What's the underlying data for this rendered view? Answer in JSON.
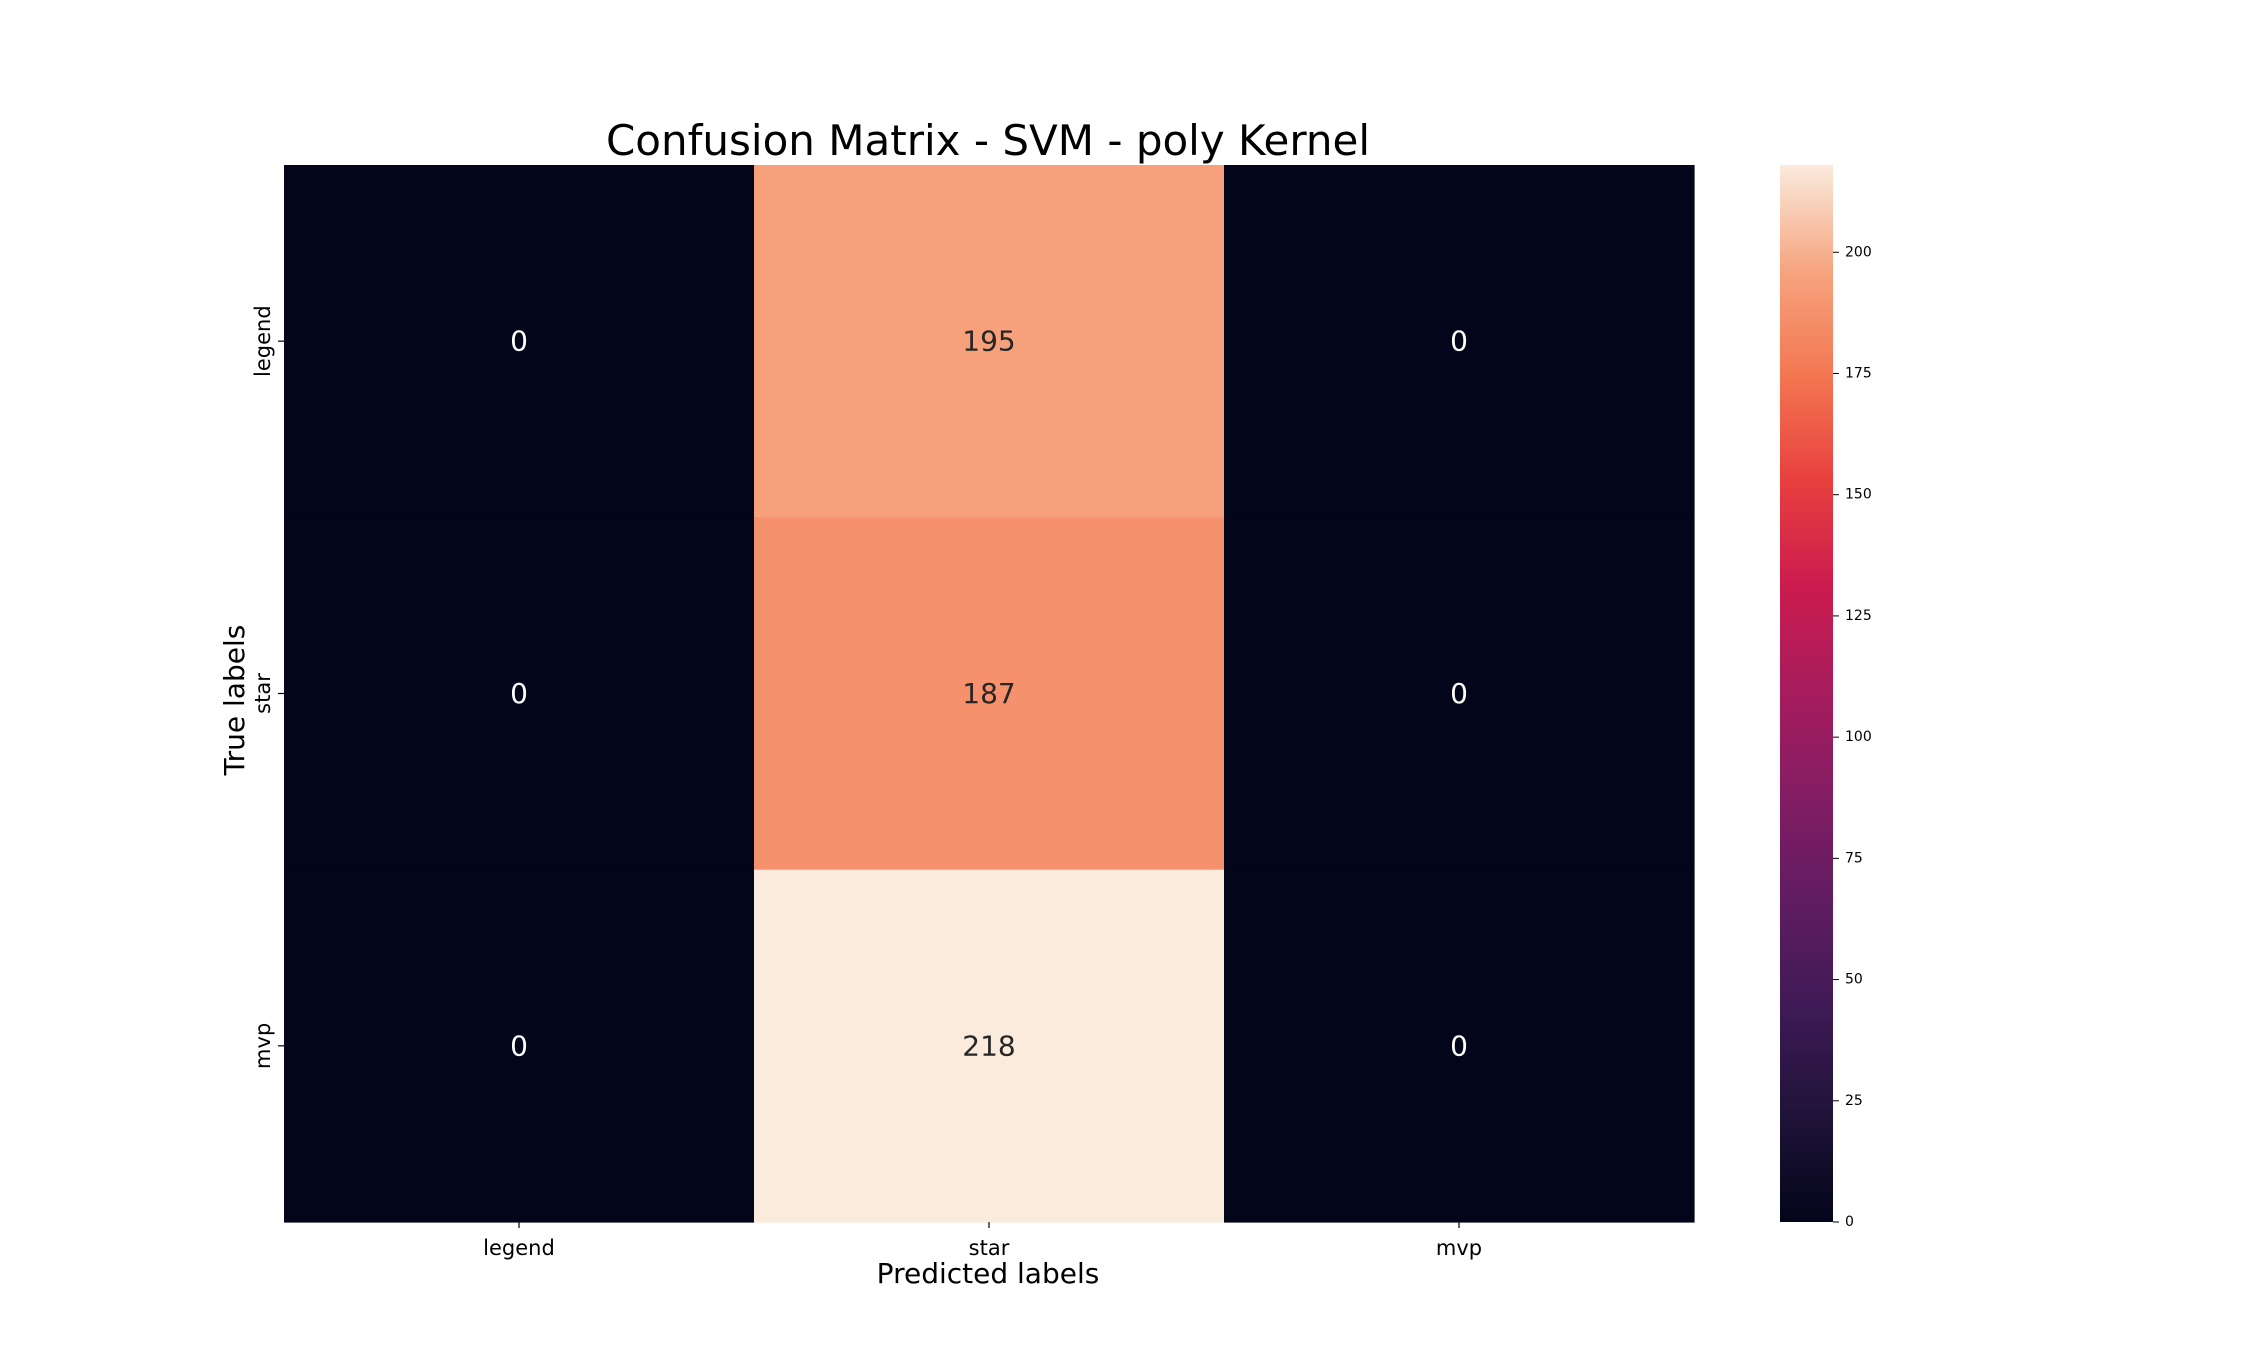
{
  "chart_data": {
    "type": "heatmap",
    "title": "Confusion Matrix - SVM - poly Kernel",
    "xlabel": "Predicted labels",
    "ylabel": "True labels",
    "x_categories": [
      "legend",
      "star",
      "mvp"
    ],
    "y_categories": [
      "legend",
      "star",
      "mvp"
    ],
    "values": [
      [
        0,
        195,
        0
      ],
      [
        0,
        187,
        0
      ],
      [
        0,
        218,
        0
      ]
    ],
    "colormap": "rocket",
    "colorbar": {
      "range": [
        0,
        218
      ],
      "ticks": [
        0,
        25,
        50,
        75,
        100,
        125,
        150,
        175,
        200
      ]
    },
    "annotation_colors": {
      "on_dark": "#ffffff",
      "on_light": "#262626"
    }
  }
}
